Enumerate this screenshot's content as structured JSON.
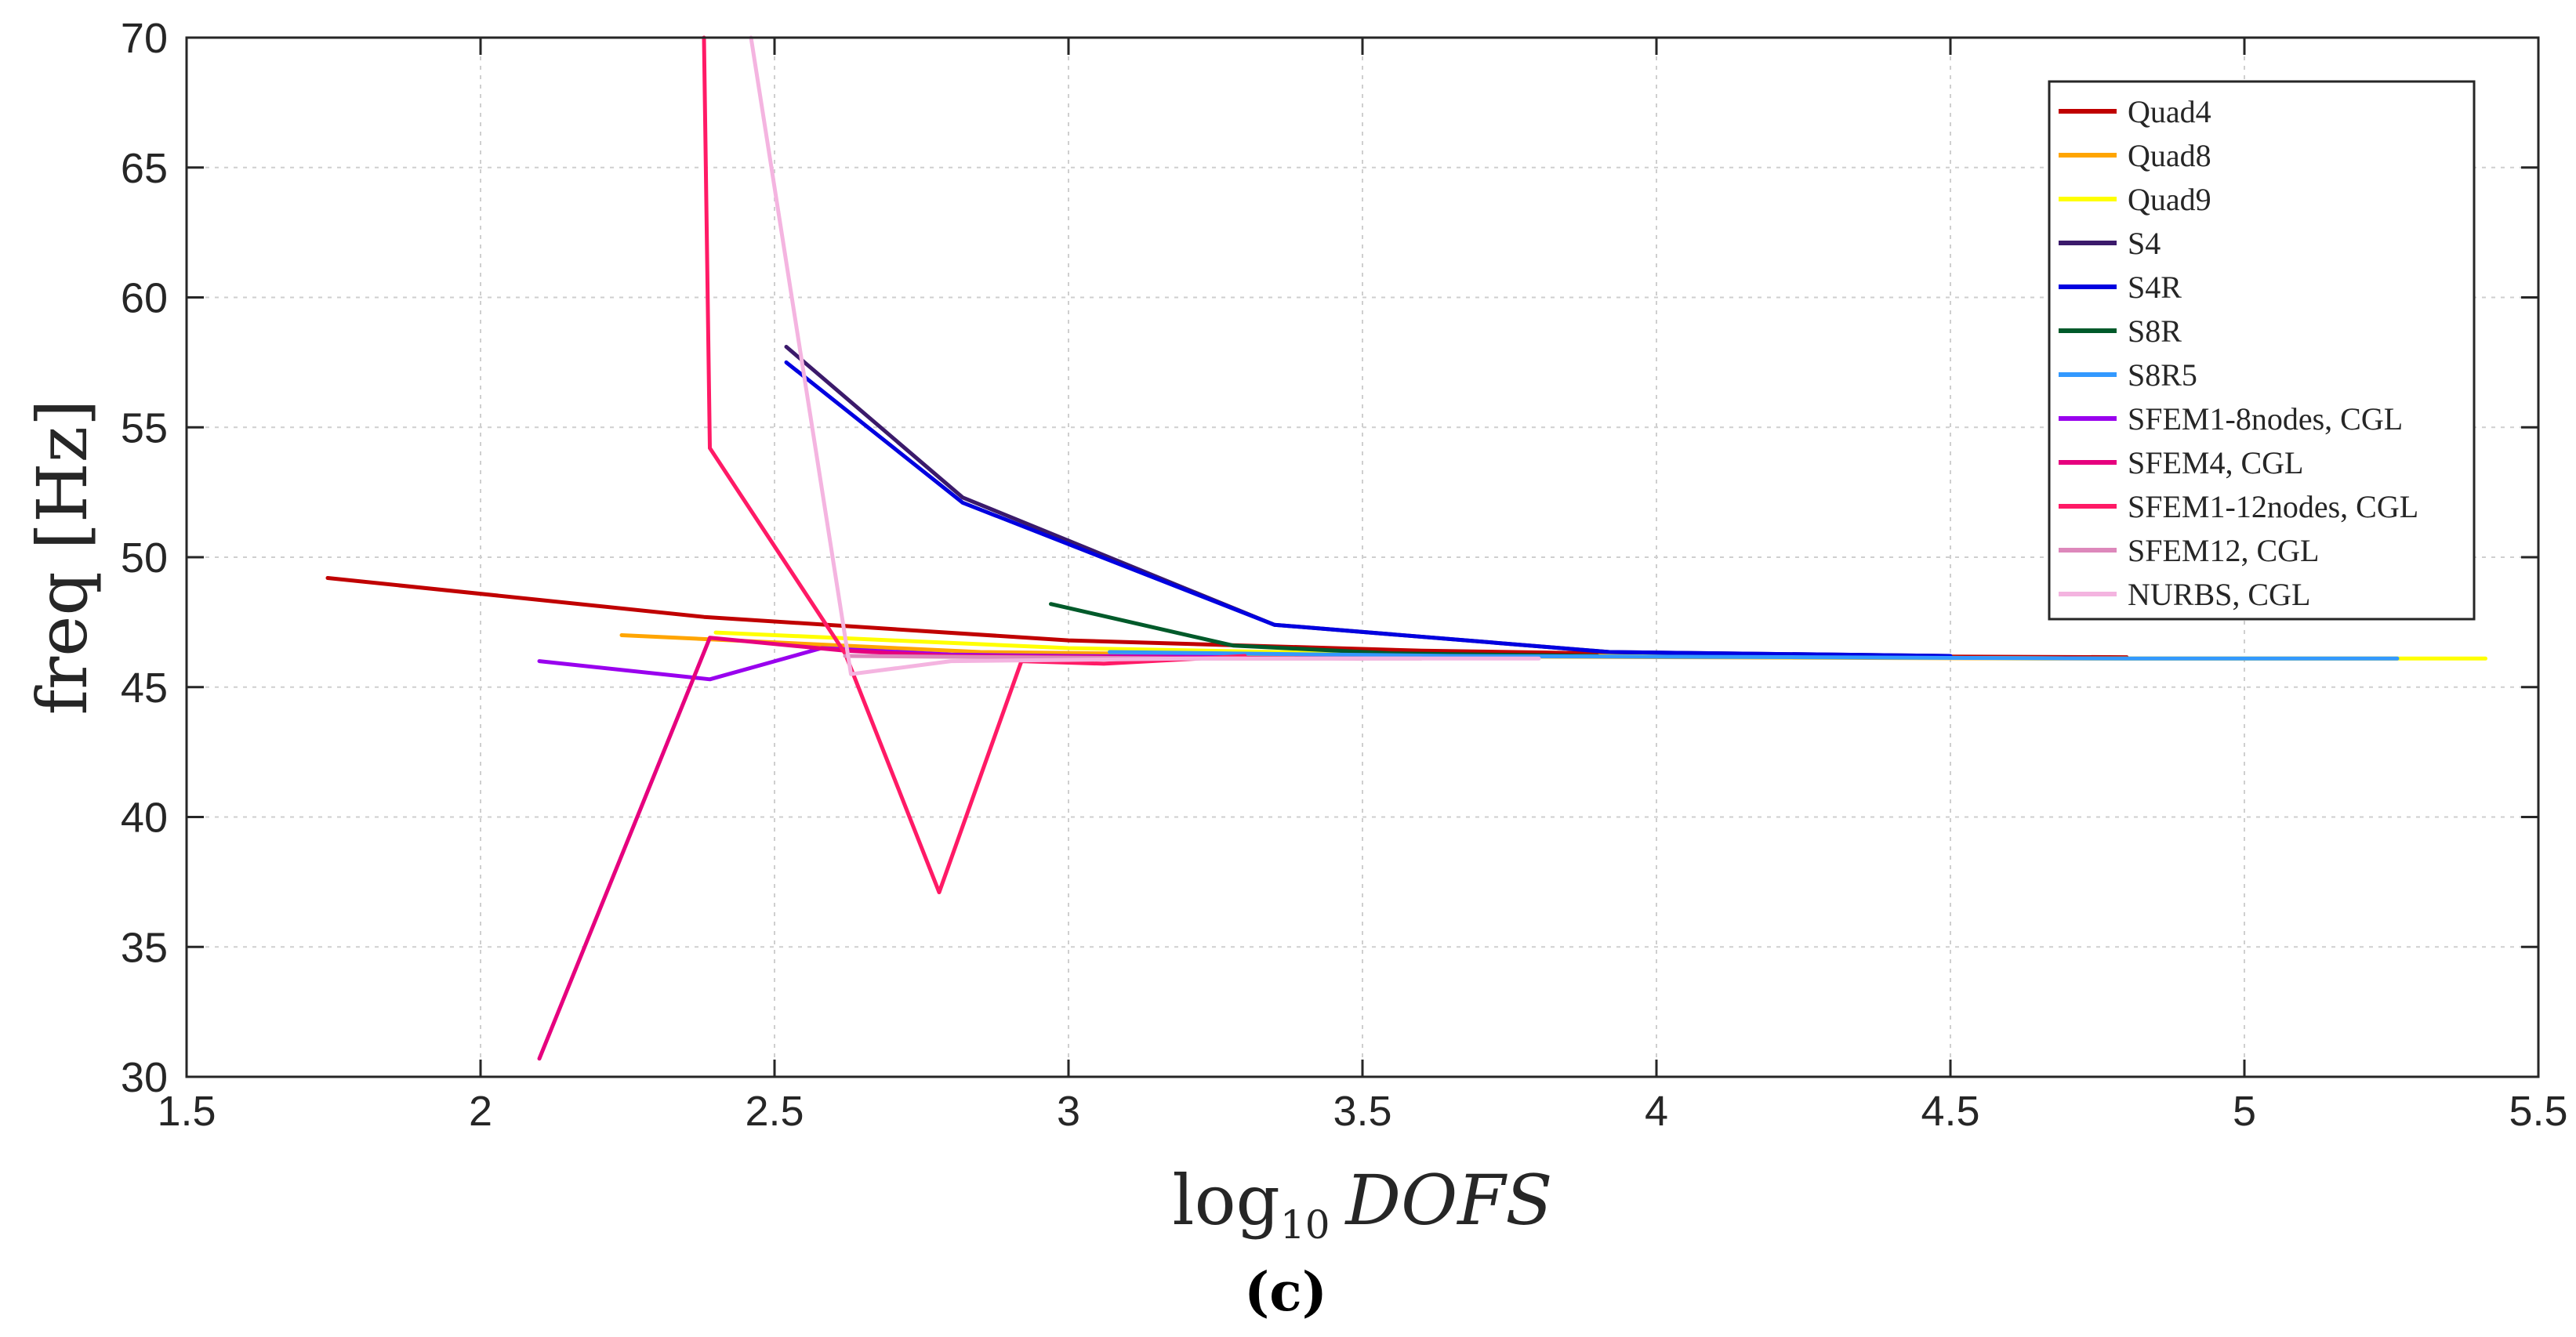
{
  "chart_data": {
    "type": "line",
    "title": "",
    "xlabel_prefix": "log",
    "xlabel_subscript": "10",
    "xlabel_var": "DOFS",
    "ylabel": "freq [Hz]",
    "panel_label": "(c)",
    "xlim": [
      1.5,
      5.5
    ],
    "ylim": [
      30,
      70
    ],
    "xticks": [
      "1.5",
      "2",
      "2.5",
      "3",
      "3.5",
      "4",
      "4.5",
      "5",
      "5.5"
    ],
    "yticks": [
      "30",
      "35",
      "40",
      "45",
      "50",
      "55",
      "60",
      "65",
      "70"
    ],
    "grid": true,
    "legend_position": "top-right",
    "series": [
      {
        "name": "Quad4",
        "color": "#c00000",
        "x": [
          1.74,
          2.38,
          3.0,
          3.6,
          4.2,
          4.8
        ],
        "y": [
          49.2,
          47.7,
          46.8,
          46.4,
          46.2,
          46.15
        ]
      },
      {
        "name": "Quad8",
        "color": "#ffa500",
        "x": [
          2.24,
          2.85,
          3.45,
          4.05,
          4.66,
          5.26
        ],
        "y": [
          47.0,
          46.35,
          46.2,
          46.15,
          46.1,
          46.1
        ]
      },
      {
        "name": "Quad9",
        "color": "#ffff00",
        "x": [
          2.4,
          3.0,
          3.6,
          4.2,
          4.8,
          5.41
        ],
        "y": [
          47.1,
          46.5,
          46.25,
          46.15,
          46.1,
          46.1
        ]
      },
      {
        "name": "S4",
        "color": "#3b1a6b",
        "x": [
          2.52,
          2.82,
          3.35,
          3.92,
          4.5
        ],
        "y": [
          58.1,
          52.3,
          47.4,
          46.35,
          46.2
        ]
      },
      {
        "name": "S4R",
        "color": "#0000e0",
        "x": [
          2.52,
          2.82,
          3.35,
          3.92,
          4.5
        ],
        "y": [
          57.5,
          52.1,
          47.4,
          46.35,
          46.2
        ]
      },
      {
        "name": "S8R",
        "color": "#005a2a",
        "x": [
          2.97,
          3.28,
          3.55,
          3.9
        ],
        "y": [
          48.2,
          46.6,
          46.3,
          46.2
        ]
      },
      {
        "name": "S8R5",
        "color": "#3399ff",
        "x": [
          3.07,
          3.65,
          4.25,
          4.8,
          5.26
        ],
        "y": [
          46.35,
          46.2,
          46.15,
          46.1,
          46.1
        ]
      },
      {
        "name": "SFEM1-8nodes, CGL",
        "color": "#9900ee",
        "x": [
          2.1,
          2.39,
          2.58,
          2.8,
          3.0,
          3.3
        ],
        "y": [
          46.0,
          45.3,
          46.5,
          46.25,
          46.2,
          46.15
        ]
      },
      {
        "name": "SFEM4, CGL",
        "color": "#e6007e",
        "x": [
          2.1,
          2.39,
          2.62,
          2.8,
          3.1,
          3.5
        ],
        "y": [
          30.7,
          46.9,
          46.4,
          46.2,
          46.15,
          46.1
        ]
      },
      {
        "name": "SFEM1-12nodes, CGL",
        "color": "#ff1a66",
        "x": [
          2.38,
          2.39,
          2.62,
          2.78,
          2.92,
          3.06,
          3.3
        ],
        "y": [
          70.0,
          54.2,
          46.3,
          37.1,
          46.0,
          45.9,
          46.2
        ]
      },
      {
        "name": "SFEM12, CGL",
        "color": "#dd88bb",
        "x": [
          2.62,
          2.9,
          3.2,
          3.6
        ],
        "y": [
          46.2,
          46.15,
          46.1,
          46.1
        ]
      },
      {
        "name": "NURBS, CGL",
        "color": "#f4b4e0",
        "x": [
          2.46,
          2.63,
          2.8,
          3.2,
          3.8
        ],
        "y": [
          70.0,
          45.5,
          46.0,
          46.1,
          46.1
        ]
      }
    ]
  }
}
